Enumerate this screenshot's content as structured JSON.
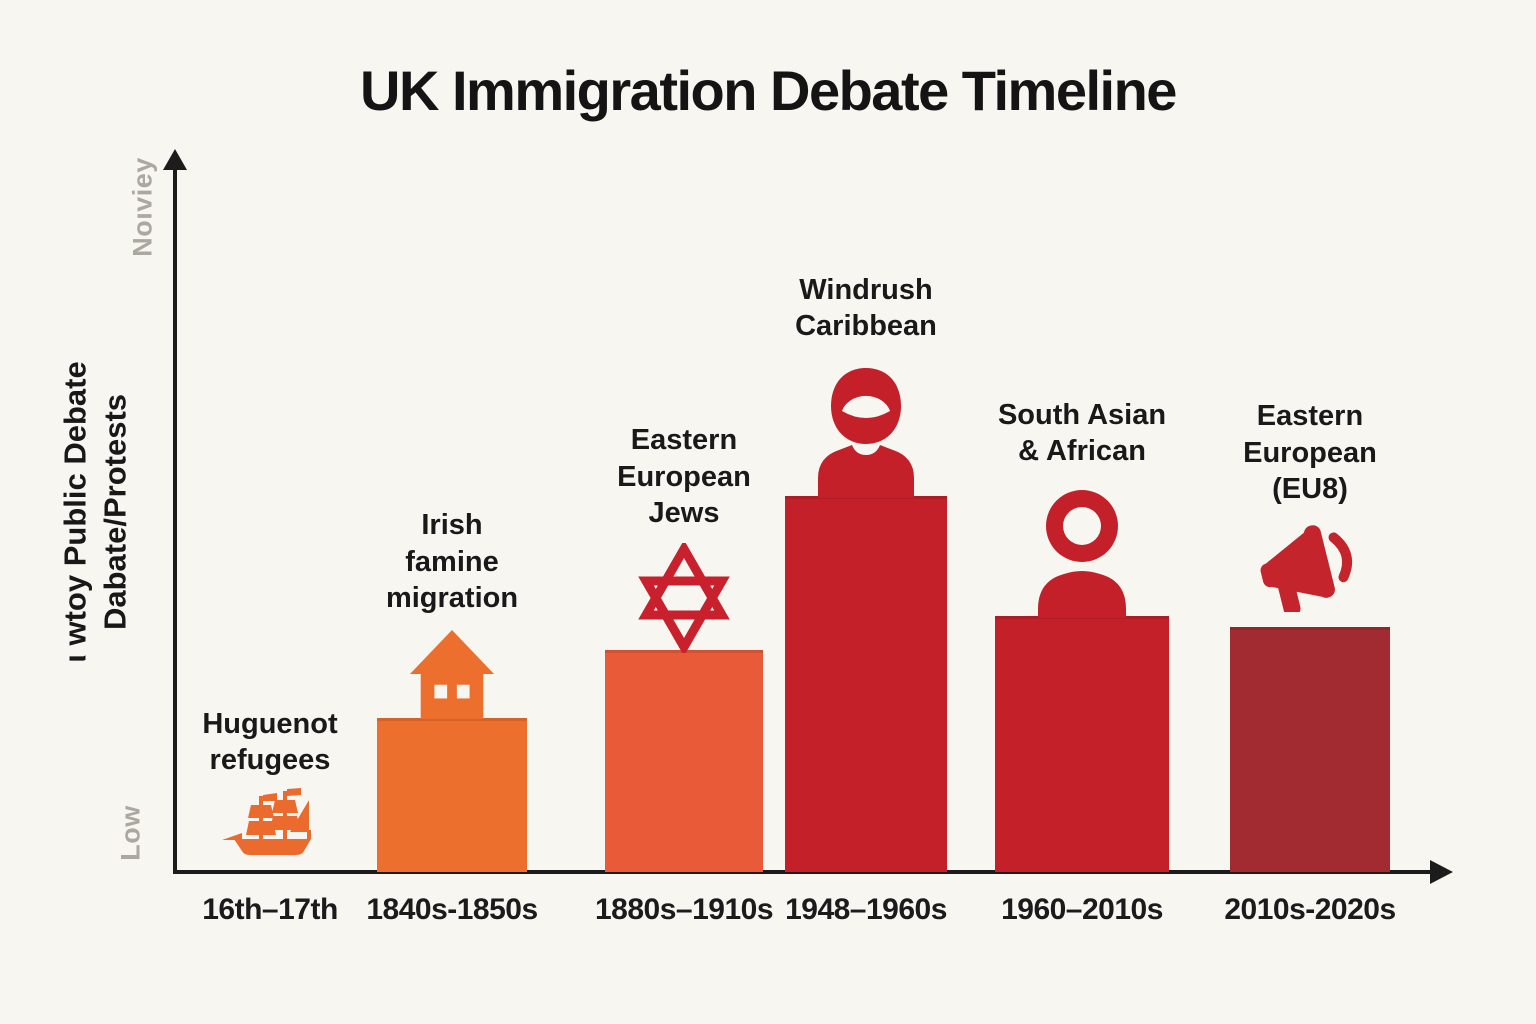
{
  "title": "UK Immigration Debate Timeline",
  "y_axis": {
    "top_label": "Noıviey",
    "bottom_label": "Low",
    "title_line1": "ι wtoy Public Debate",
    "title_line2": "Dabate/Protests"
  },
  "chart_data": {
    "type": "bar",
    "title": "UK Immigration Debate Timeline",
    "xlabel": "",
    "ylabel": "ι wtoy Public Debate Dabate/Protests",
    "y_scale_annotations": [
      "Low",
      "Noıviey"
    ],
    "grid": false,
    "legend": "none",
    "ylim_relative": [
      0,
      1
    ],
    "categories": [
      "16th–17th",
      "1840s-1850s",
      "1880s–1910s",
      "1948–1960s",
      "1960–2010s",
      "2010s-2020s"
    ],
    "bars": [
      {
        "group": "Huguenot refugees",
        "label_lines": [
          "Huguenot",
          "refugees"
        ],
        "period": "16th–17th",
        "value_rel": 0.0,
        "color": "#EB6B2F",
        "icon": "sailing-ship",
        "icon_color": "#EB6B2F"
      },
      {
        "group": "Irish famine migration",
        "label_lines": [
          "Irish",
          "famine",
          "migration"
        ],
        "period": "1840s-1850s",
        "value_rel": 0.214,
        "color": "#ED6F2E",
        "icon": "house",
        "icon_color": "#ED6F2E"
      },
      {
        "group": "Eastern European Jews",
        "label_lines": [
          "Eastern",
          "European",
          "Jews"
        ],
        "period": "1880s–1910s",
        "value_rel": 0.308,
        "color": "#E95B38",
        "icon": "star-of-david",
        "icon_color": "#C8202C"
      },
      {
        "group": "Windrush Caribbean",
        "label_lines": [
          "Windrush",
          "Caribbean"
        ],
        "period": "1948–1960s",
        "value_rel": 0.522,
        "color": "#C4202A",
        "icon": "person-cap",
        "icon_color": "#C4202A"
      },
      {
        "group": "South Asian & African",
        "label_lines": [
          "South Asian",
          "& African"
        ],
        "period": "1960–2010s",
        "value_rel": 0.356,
        "color": "#C4202A",
        "icon": "person-ring",
        "icon_color": "#C4202A"
      },
      {
        "group": "Eastern European (EU8)",
        "label_lines": [
          "Eastern",
          "European",
          "(EU8)"
        ],
        "period": "2010s-2020s",
        "value_rel": 0.34,
        "color": "#A12B30",
        "icon": "megaphone",
        "icon_color": "#C4242C"
      }
    ]
  },
  "colors": {
    "background": "#F8F6F1",
    "axis": "#1C1C1C",
    "text": "#191919",
    "muted_gray": "#ACA8A1",
    "orange": "#ED6F2E",
    "tomato": "#E95B38",
    "red": "#C4202A",
    "dark_red": "#A12B30"
  }
}
